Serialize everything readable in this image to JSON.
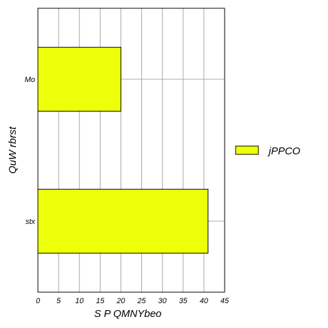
{
  "chart_data": {
    "type": "bar",
    "orientation": "horizontal",
    "categories": [
      "Mo",
      "stx"
    ],
    "series": [
      {
        "name": "jPPCO",
        "values": [
          20,
          41
        ],
        "color": "#eeff0a"
      }
    ],
    "xlabel": "S P QMNYbeo",
    "ylabel": "QuW  rbrst",
    "xlim": [
      0,
      45
    ],
    "xticks": [
      0,
      5,
      10,
      15,
      20,
      25,
      30,
      35,
      40,
      45
    ],
    "grid": true,
    "legend_position": "right"
  }
}
